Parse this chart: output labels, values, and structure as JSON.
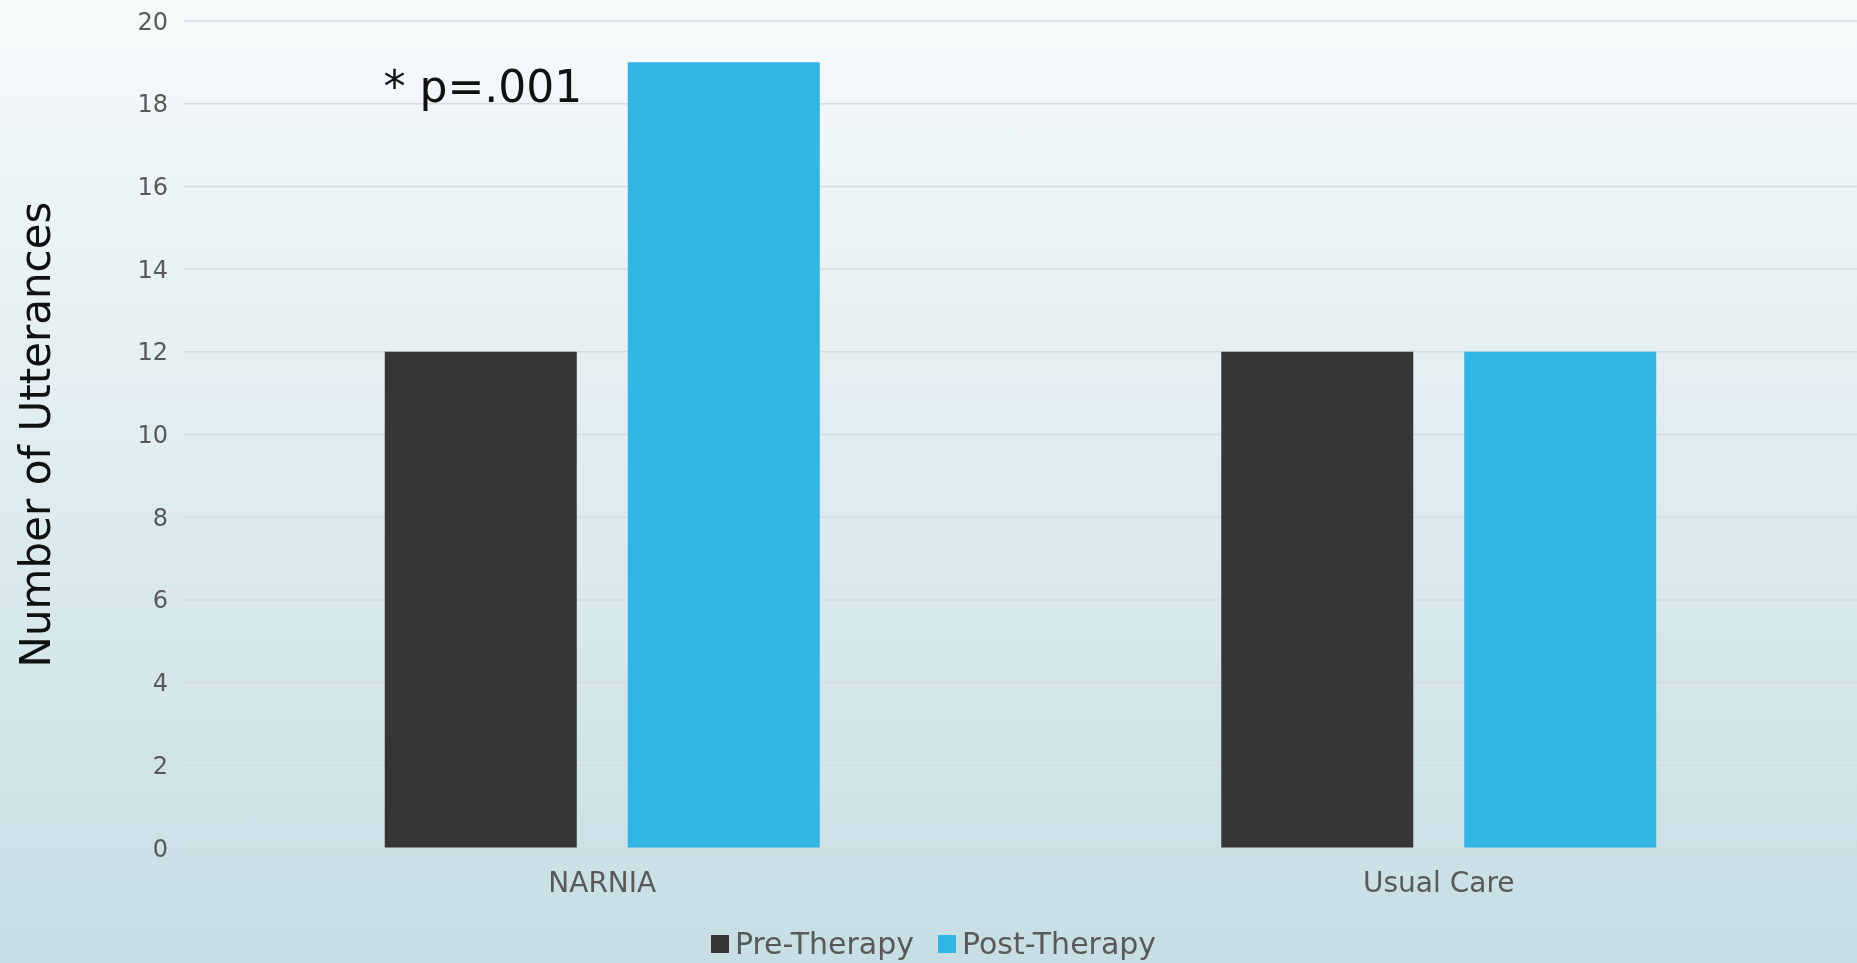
{
  "chart_data": {
    "type": "bar",
    "ylabel": "Number of Utterances",
    "categories": [
      "NARNIA",
      "Usual Care"
    ],
    "series": [
      {
        "name": "Pre-Therapy",
        "color": "#363636",
        "values": [
          12,
          12
        ]
      },
      {
        "name": "Post-Therapy",
        "color": "#32b4e5",
        "values": [
          19,
          12
        ]
      }
    ],
    "ylim": [
      0,
      20
    ],
    "yticks": [
      0,
      2,
      4,
      6,
      8,
      10,
      12,
      14,
      16,
      18,
      20
    ],
    "grid": "y",
    "legend": "bottom",
    "annotations": [
      "* p=.001"
    ]
  }
}
